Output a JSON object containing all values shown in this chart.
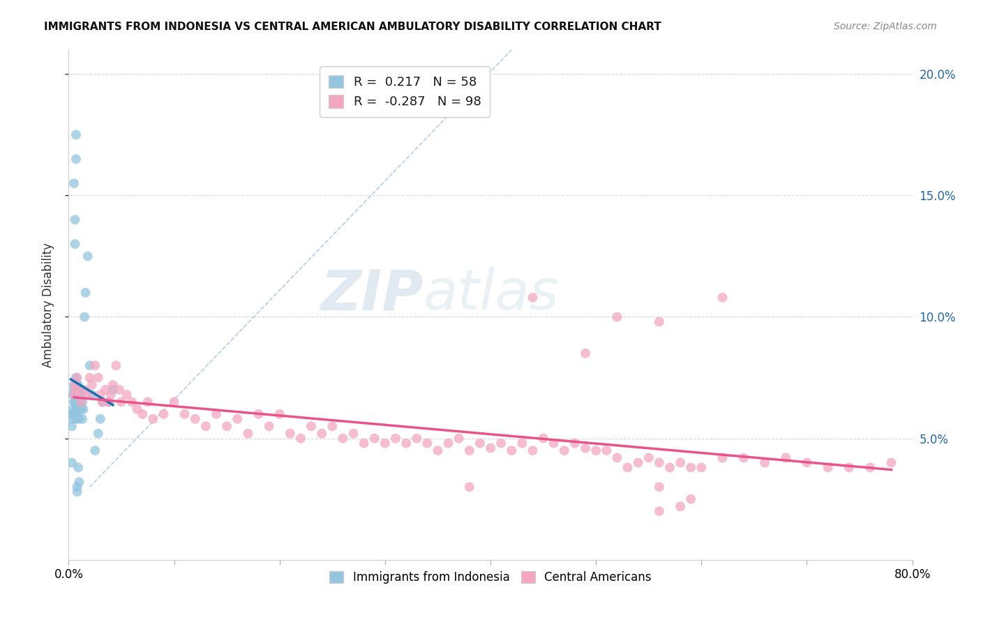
{
  "title": "IMMIGRANTS FROM INDONESIA VS CENTRAL AMERICAN AMBULATORY DISABILITY CORRELATION CHART",
  "source": "Source: ZipAtlas.com",
  "ylabel": "Ambulatory Disability",
  "legend_label1": "Immigrants from Indonesia",
  "legend_label2": "Central Americans",
  "R1": 0.217,
  "N1": 58,
  "R2": -0.287,
  "N2": 98,
  "xlim": [
    0.0,
    0.8
  ],
  "ylim": [
    0.0,
    0.21
  ],
  "ytick_vals": [
    0.05,
    0.1,
    0.15,
    0.2
  ],
  "ytick_labels": [
    "5.0%",
    "10.0%",
    "15.0%",
    "20.0%"
  ],
  "color_blue": "#92c5de",
  "color_pink": "#f4a6c0",
  "color_blue_line": "#1a6faf",
  "color_pink_line": "#e8538a",
  "color_diag": "#aac8e0",
  "background": "#ffffff",
  "watermark_zip": "ZIP",
  "watermark_atlas": "atlas",
  "blue_points_x": [
    0.002,
    0.003,
    0.003,
    0.004,
    0.004,
    0.004,
    0.005,
    0.005,
    0.005,
    0.005,
    0.006,
    0.006,
    0.006,
    0.006,
    0.007,
    0.007,
    0.007,
    0.007,
    0.007,
    0.008,
    0.008,
    0.008,
    0.008,
    0.009,
    0.009,
    0.009,
    0.009,
    0.01,
    0.01,
    0.01,
    0.01,
    0.011,
    0.011,
    0.012,
    0.012,
    0.013,
    0.013,
    0.014,
    0.015,
    0.016,
    0.018,
    0.02,
    0.022,
    0.025,
    0.028,
    0.03,
    0.032,
    0.038,
    0.042,
    0.005,
    0.006,
    0.006,
    0.007,
    0.007,
    0.008,
    0.008,
    0.009,
    0.01
  ],
  "blue_points_y": [
    0.06,
    0.04,
    0.055,
    0.058,
    0.062,
    0.068,
    0.06,
    0.065,
    0.07,
    0.072,
    0.06,
    0.065,
    0.068,
    0.072,
    0.058,
    0.062,
    0.065,
    0.07,
    0.075,
    0.06,
    0.062,
    0.068,
    0.072,
    0.062,
    0.065,
    0.068,
    0.072,
    0.058,
    0.062,
    0.065,
    0.07,
    0.065,
    0.07,
    0.062,
    0.068,
    0.058,
    0.065,
    0.062,
    0.1,
    0.11,
    0.125,
    0.08,
    0.068,
    0.045,
    0.052,
    0.058,
    0.065,
    0.065,
    0.07,
    0.155,
    0.13,
    0.14,
    0.165,
    0.175,
    0.03,
    0.028,
    0.038,
    0.032
  ],
  "pink_points_x": [
    0.005,
    0.006,
    0.007,
    0.008,
    0.01,
    0.012,
    0.015,
    0.018,
    0.02,
    0.022,
    0.025,
    0.028,
    0.03,
    0.032,
    0.035,
    0.038,
    0.04,
    0.042,
    0.045,
    0.048,
    0.05,
    0.055,
    0.06,
    0.065,
    0.07,
    0.075,
    0.08,
    0.09,
    0.1,
    0.11,
    0.12,
    0.13,
    0.14,
    0.15,
    0.16,
    0.17,
    0.18,
    0.19,
    0.2,
    0.21,
    0.22,
    0.23,
    0.24,
    0.25,
    0.26,
    0.27,
    0.28,
    0.29,
    0.3,
    0.31,
    0.32,
    0.33,
    0.34,
    0.35,
    0.36,
    0.37,
    0.38,
    0.39,
    0.4,
    0.41,
    0.42,
    0.43,
    0.44,
    0.45,
    0.46,
    0.47,
    0.48,
    0.49,
    0.5,
    0.51,
    0.52,
    0.53,
    0.54,
    0.55,
    0.56,
    0.57,
    0.58,
    0.59,
    0.6,
    0.62,
    0.64,
    0.66,
    0.68,
    0.7,
    0.72,
    0.74,
    0.76,
    0.78,
    0.44,
    0.52,
    0.56,
    0.49,
    0.62,
    0.38,
    0.56,
    0.56,
    0.58,
    0.59
  ],
  "pink_points_y": [
    0.068,
    0.072,
    0.07,
    0.075,
    0.068,
    0.065,
    0.07,
    0.068,
    0.075,
    0.072,
    0.08,
    0.075,
    0.068,
    0.065,
    0.07,
    0.065,
    0.068,
    0.072,
    0.08,
    0.07,
    0.065,
    0.068,
    0.065,
    0.062,
    0.06,
    0.065,
    0.058,
    0.06,
    0.065,
    0.06,
    0.058,
    0.055,
    0.06,
    0.055,
    0.058,
    0.052,
    0.06,
    0.055,
    0.06,
    0.052,
    0.05,
    0.055,
    0.052,
    0.055,
    0.05,
    0.052,
    0.048,
    0.05,
    0.048,
    0.05,
    0.048,
    0.05,
    0.048,
    0.045,
    0.048,
    0.05,
    0.045,
    0.048,
    0.046,
    0.048,
    0.045,
    0.048,
    0.045,
    0.05,
    0.048,
    0.045,
    0.048,
    0.046,
    0.045,
    0.045,
    0.042,
    0.038,
    0.04,
    0.042,
    0.04,
    0.038,
    0.04,
    0.038,
    0.038,
    0.042,
    0.042,
    0.04,
    0.042,
    0.04,
    0.038,
    0.038,
    0.038,
    0.04,
    0.108,
    0.1,
    0.098,
    0.085,
    0.108,
    0.03,
    0.02,
    0.03,
    0.022,
    0.025
  ]
}
